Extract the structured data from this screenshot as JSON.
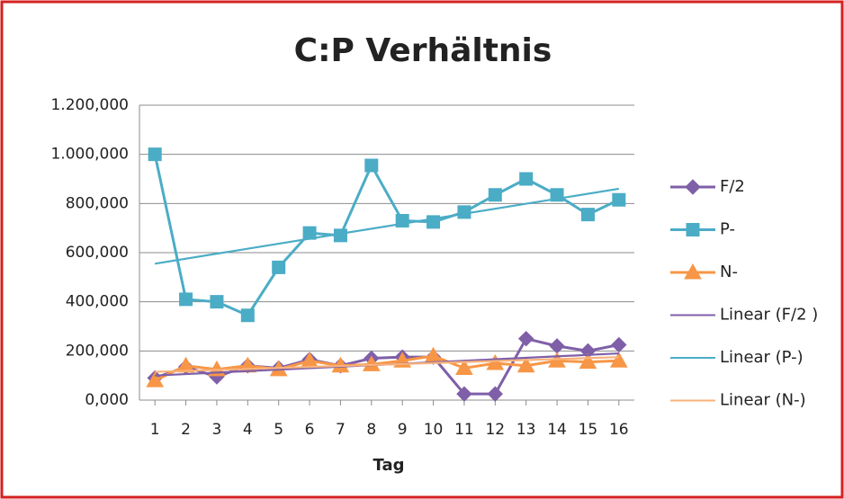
{
  "chart_data": {
    "type": "line",
    "title": "C:P Verhältnis",
    "x_label": "Tag",
    "x": [
      1,
      2,
      3,
      4,
      5,
      6,
      7,
      8,
      9,
      10,
      11,
      12,
      13,
      14,
      15,
      16
    ],
    "xlim": [
      0.5,
      16.5
    ],
    "xticks": [
      1,
      2,
      3,
      4,
      5,
      6,
      7,
      8,
      9,
      10,
      11,
      12,
      13,
      14,
      15,
      16
    ],
    "ylim": [
      0,
      1200
    ],
    "yticks": [
      {
        "value": 0,
        "label": "0,000"
      },
      {
        "value": 200,
        "label": "200,000"
      },
      {
        "value": 400,
        "label": "400,000"
      },
      {
        "value": 600,
        "label": "600,000"
      },
      {
        "value": 800,
        "label": "800,000"
      },
      {
        "value": 1000,
        "label": "1.000,000"
      },
      {
        "value": 1200,
        "label": "1.200,000"
      }
    ],
    "grid": true,
    "legend": "right",
    "series": [
      {
        "name": "F/2",
        "color": "#7f5fa8",
        "marker": "diamond",
        "values": [
          90,
          135,
          95,
          140,
          130,
          165,
          140,
          170,
          175,
          175,
          25,
          25,
          250,
          220,
          200,
          225
        ]
      },
      {
        "name": "P-",
        "color": "#4bacc6",
        "marker": "square",
        "values": [
          1000,
          410,
          400,
          345,
          540,
          680,
          670,
          955,
          730,
          725,
          765,
          835,
          900,
          835,
          755,
          815
        ]
      },
      {
        "name": "N-",
        "color": "#f79646",
        "marker": "triangle",
        "values": [
          80,
          140,
          125,
          140,
          125,
          160,
          140,
          145,
          160,
          180,
          130,
          150,
          140,
          160,
          155,
          160
        ]
      },
      {
        "name": "Linear (F/2 )",
        "color": "#7f5fa8",
        "x": [
          1,
          16
        ],
        "values": [
          100,
          190
        ]
      },
      {
        "name": "Linear (P-)",
        "color": "#4bacc6",
        "x": [
          1,
          16
        ],
        "values": [
          555,
          860
        ]
      },
      {
        "name": "Linear (N-)",
        "color": "#f9b27a",
        "x": [
          1,
          16
        ],
        "values": [
          115,
          175
        ]
      }
    ]
  }
}
